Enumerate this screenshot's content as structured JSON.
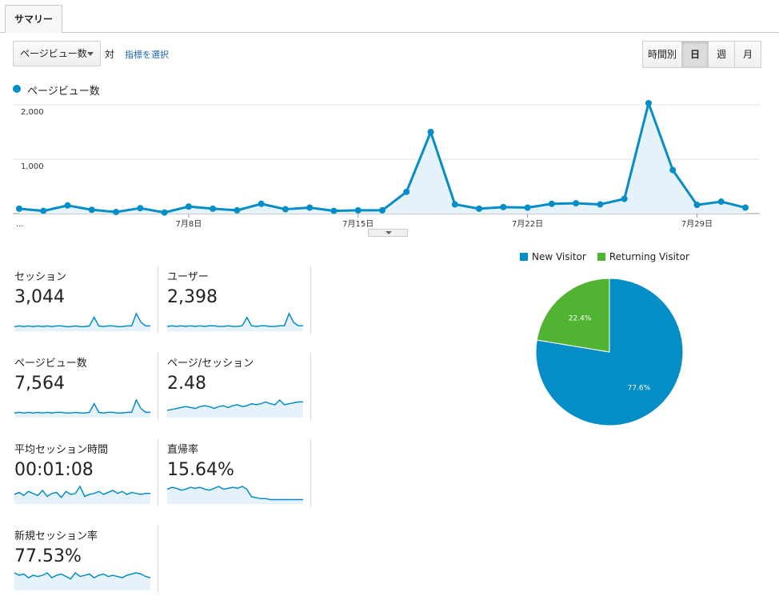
{
  "tab": {
    "label": "サマリー"
  },
  "controls": {
    "metric_dropdown": "ページビュー数",
    "vs_label": "対",
    "select_metric_link": "指標を選択",
    "granularity": [
      "時間別",
      "日",
      "週",
      "月"
    ],
    "granularity_selected": "日"
  },
  "colors": {
    "accent": "#058dc7",
    "fill": "#e6f2fa",
    "new_visitor": "#058dc7",
    "returning_visitor": "#50b432"
  },
  "chart_data": [
    {
      "type": "line",
      "series": [
        {
          "name": "ページビュー数",
          "values": [
            90,
            50,
            150,
            70,
            30,
            100,
            20,
            130,
            90,
            60,
            180,
            80,
            110,
            50,
            60,
            60,
            400,
            1500,
            170,
            90,
            120,
            110,
            180,
            190,
            170,
            270,
            2030,
            800,
            160,
            220,
            110
          ]
        }
      ],
      "ylim": [
        0,
        2000
      ],
      "y_ticks": [
        "1,000",
        "2,000"
      ],
      "x_ticks": [
        {
          "label": "...",
          "index": 0
        },
        {
          "label": "7月8日",
          "index": 7
        },
        {
          "label": "7月15日",
          "index": 14
        },
        {
          "label": "7月22日",
          "index": 21
        },
        {
          "label": "7月29日",
          "index": 28
        }
      ],
      "grid": true
    },
    {
      "type": "pie",
      "categories": [
        "New Visitor",
        "Returning Visitor"
      ],
      "values": [
        77.6,
        22.4
      ],
      "labels": [
        "77.6%",
        "22.4%"
      ],
      "legend": "top"
    }
  ],
  "kpis": [
    {
      "label": "セッション",
      "value": "3,044",
      "spark": [
        5,
        6,
        5,
        6,
        5,
        6,
        5,
        6,
        5,
        6,
        6,
        5,
        5,
        6,
        5,
        5,
        6,
        20,
        6,
        5,
        6,
        6,
        5,
        5,
        6,
        6,
        26,
        12,
        6,
        6
      ]
    },
    {
      "label": "ユーザー",
      "value": "2,398",
      "spark": [
        5,
        6,
        5,
        6,
        5,
        6,
        5,
        6,
        5,
        6,
        6,
        5,
        5,
        6,
        5,
        5,
        6,
        19,
        6,
        5,
        6,
        6,
        5,
        5,
        6,
        6,
        25,
        11,
        6,
        6
      ]
    },
    {
      "label": "ページビュー数",
      "value": "7,564",
      "spark": [
        5,
        6,
        5,
        6,
        5,
        6,
        5,
        6,
        5,
        6,
        6,
        5,
        5,
        6,
        5,
        5,
        6,
        20,
        6,
        5,
        6,
        6,
        5,
        5,
        6,
        6,
        26,
        12,
        6,
        6
      ]
    },
    {
      "label": "ページ/セッション",
      "value": "2.48",
      "spark": [
        6,
        7,
        8,
        9,
        10,
        9,
        8,
        10,
        11,
        10,
        8,
        10,
        11,
        9,
        11,
        12,
        10,
        11,
        13,
        12,
        13,
        15,
        13,
        12,
        17,
        12,
        13,
        14,
        15,
        15
      ]
    },
    {
      "label": "平均セッション時間",
      "value": "00:01:08",
      "spark": [
        8,
        10,
        7,
        11,
        9,
        7,
        12,
        6,
        9,
        10,
        5,
        11,
        8,
        9,
        16,
        6,
        8,
        9,
        11,
        8,
        10,
        12,
        9,
        11,
        8,
        10,
        9,
        8,
        9,
        9
      ]
    },
    {
      "label": "直帰率",
      "value": "15.64%",
      "spark": [
        14,
        16,
        15,
        13,
        14,
        16,
        15,
        16,
        14,
        13,
        15,
        17,
        14,
        15,
        16,
        15,
        17,
        14,
        6,
        5,
        4,
        4,
        3,
        3,
        3,
        3,
        3,
        3,
        3,
        3
      ]
    },
    {
      "label": "新規セッション率",
      "value": "77.53%",
      "spark": [
        13,
        11,
        12,
        9,
        11,
        10,
        11,
        13,
        9,
        11,
        12,
        10,
        8,
        13,
        10,
        11,
        12,
        9,
        11,
        12,
        10,
        11,
        10,
        9,
        11,
        12,
        13,
        12,
        10,
        9
      ]
    }
  ]
}
